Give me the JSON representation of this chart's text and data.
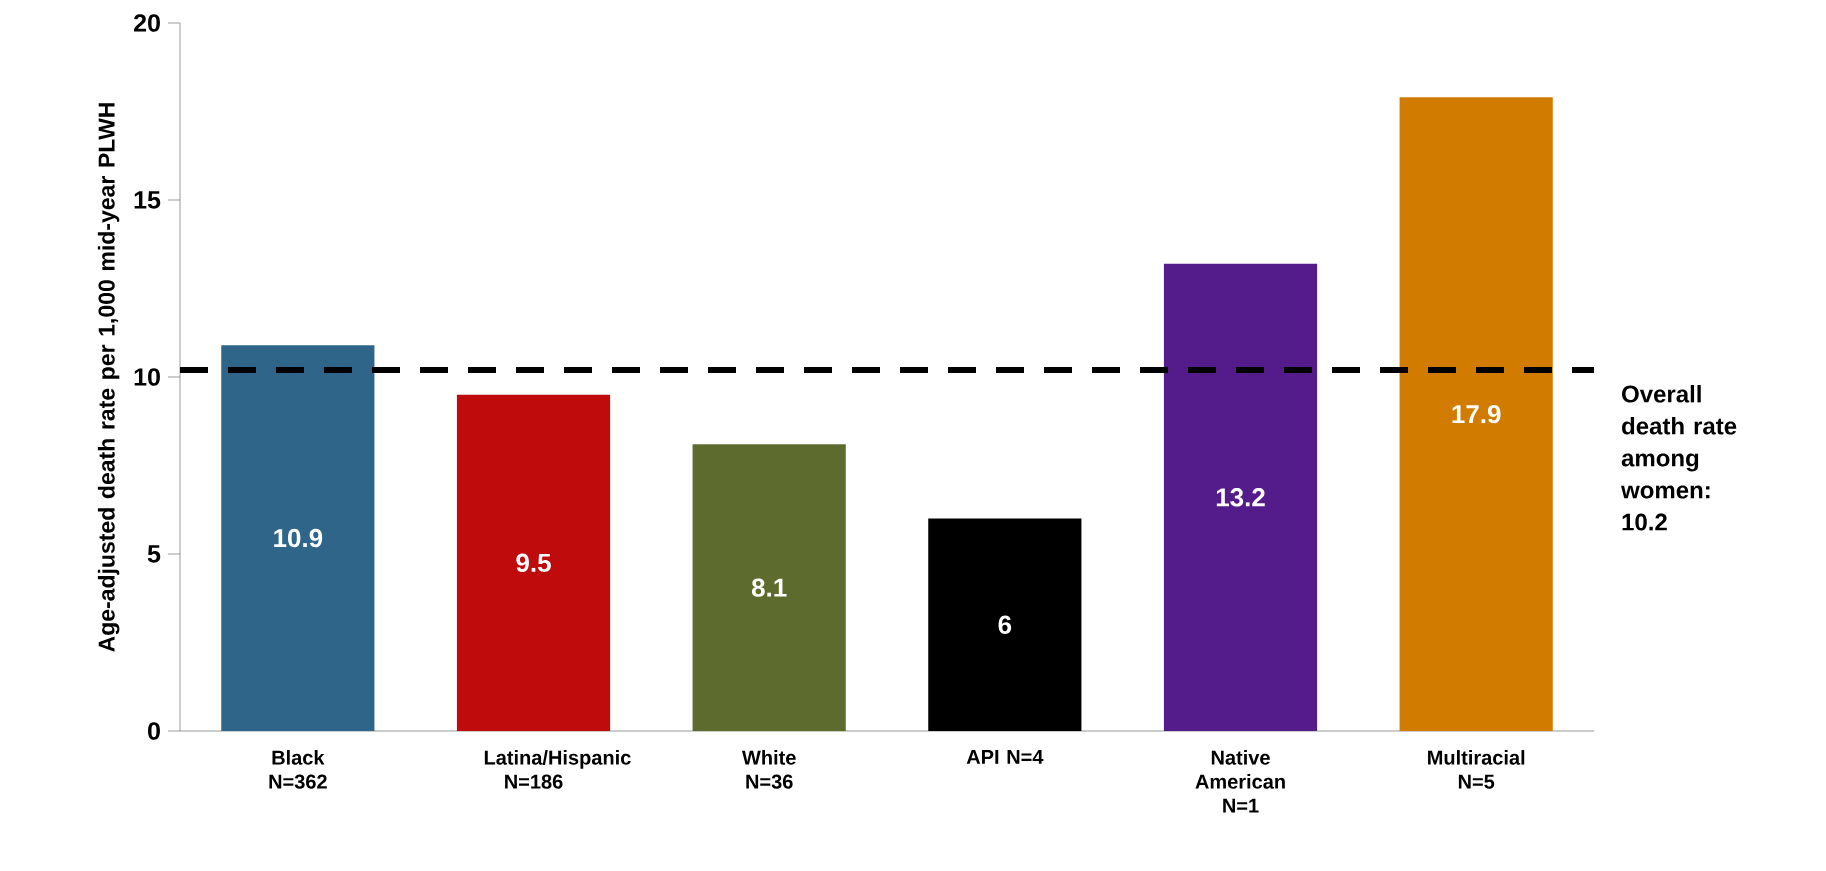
{
  "chart_data": {
    "type": "bar",
    "ylabel": "Age-adjusted death rate per 1,000 mid-year PLWH",
    "categories": [
      "Black N=362",
      "Latina/Hispanic N=186",
      "White N=36",
      "API N=4",
      "Native American N=1",
      "Multiracial N=5"
    ],
    "values": [
      10.9,
      9.5,
      8.1,
      6,
      13.2,
      17.9
    ],
    "colors": [
      "#2e6589",
      "#c00b0d",
      "#5e6b2f",
      "#000000",
      "#541b8a",
      "#d17b00"
    ],
    "ylim": [
      0,
      20
    ],
    "yticks": [
      0,
      5,
      10,
      15,
      20
    ],
    "data_labels": true,
    "grid": false,
    "ref_lines": [
      {
        "axis": "y",
        "value": 10.2,
        "label": "Overall death rate among women: 10.2",
        "color": "#000000",
        "line_style": "dashed"
      }
    ]
  }
}
